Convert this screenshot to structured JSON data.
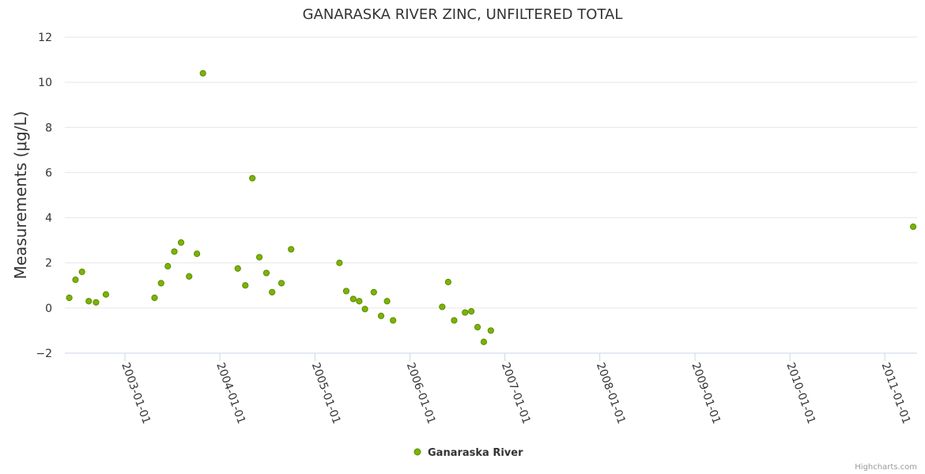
{
  "chart_data": {
    "type": "scatter",
    "title": "GANARASKA RIVER ZINC, UNFILTERED TOTAL",
    "ylabel": "Measurements (μg/L)",
    "xlabel": "",
    "ylim": [
      -2,
      12
    ],
    "yticks": [
      -2,
      0,
      2,
      4,
      6,
      8,
      10,
      12
    ],
    "xlim": [
      "2002-05-15",
      "2011-05-05"
    ],
    "xticks": [
      "2003-01-01",
      "2004-01-01",
      "2005-01-01",
      "2006-01-01",
      "2007-01-01",
      "2008-01-01",
      "2009-01-01",
      "2010-01-01",
      "2011-01-01"
    ],
    "grid": true,
    "legend_position": "bottom-center",
    "series": [
      {
        "name": "Ganaraska River",
        "color": "#7cb400",
        "points": [
          {
            "x": "2002-06-01",
            "y": 0.45
          },
          {
            "x": "2002-06-25",
            "y": 1.25
          },
          {
            "x": "2002-07-20",
            "y": 1.6
          },
          {
            "x": "2002-08-15",
            "y": 0.3
          },
          {
            "x": "2002-09-12",
            "y": 0.25
          },
          {
            "x": "2002-10-20",
            "y": 0.6
          },
          {
            "x": "2003-04-25",
            "y": 0.45
          },
          {
            "x": "2003-05-20",
            "y": 1.1
          },
          {
            "x": "2003-06-15",
            "y": 1.85
          },
          {
            "x": "2003-07-10",
            "y": 2.5
          },
          {
            "x": "2003-08-05",
            "y": 2.9
          },
          {
            "x": "2003-09-05",
            "y": 1.4
          },
          {
            "x": "2003-10-05",
            "y": 2.4
          },
          {
            "x": "2003-10-28",
            "y": 10.4
          },
          {
            "x": "2004-03-10",
            "y": 1.75
          },
          {
            "x": "2004-04-08",
            "y": 1.0
          },
          {
            "x": "2004-05-05",
            "y": 5.75
          },
          {
            "x": "2004-06-01",
            "y": 2.25
          },
          {
            "x": "2004-06-28",
            "y": 1.55
          },
          {
            "x": "2004-07-20",
            "y": 0.7
          },
          {
            "x": "2004-08-25",
            "y": 1.1
          },
          {
            "x": "2004-10-01",
            "y": 2.6
          },
          {
            "x": "2005-04-05",
            "y": 2.0
          },
          {
            "x": "2005-05-01",
            "y": 0.75
          },
          {
            "x": "2005-05-28",
            "y": 0.4
          },
          {
            "x": "2005-06-20",
            "y": 0.3
          },
          {
            "x": "2005-07-12",
            "y": -0.05
          },
          {
            "x": "2005-08-15",
            "y": 0.7
          },
          {
            "x": "2005-09-12",
            "y": -0.35
          },
          {
            "x": "2005-10-05",
            "y": 0.3
          },
          {
            "x": "2005-10-28",
            "y": -0.55
          },
          {
            "x": "2006-05-05",
            "y": 0.05
          },
          {
            "x": "2006-05-28",
            "y": 1.15
          },
          {
            "x": "2006-06-20",
            "y": -0.55
          },
          {
            "x": "2006-08-01",
            "y": -0.2
          },
          {
            "x": "2006-08-25",
            "y": -0.15
          },
          {
            "x": "2006-09-18",
            "y": -0.85
          },
          {
            "x": "2006-10-12",
            "y": -1.5
          },
          {
            "x": "2006-11-08",
            "y": -1.0
          },
          {
            "x": "2011-04-20",
            "y": 3.6
          }
        ]
      }
    ]
  },
  "credits": "Highcharts.com"
}
